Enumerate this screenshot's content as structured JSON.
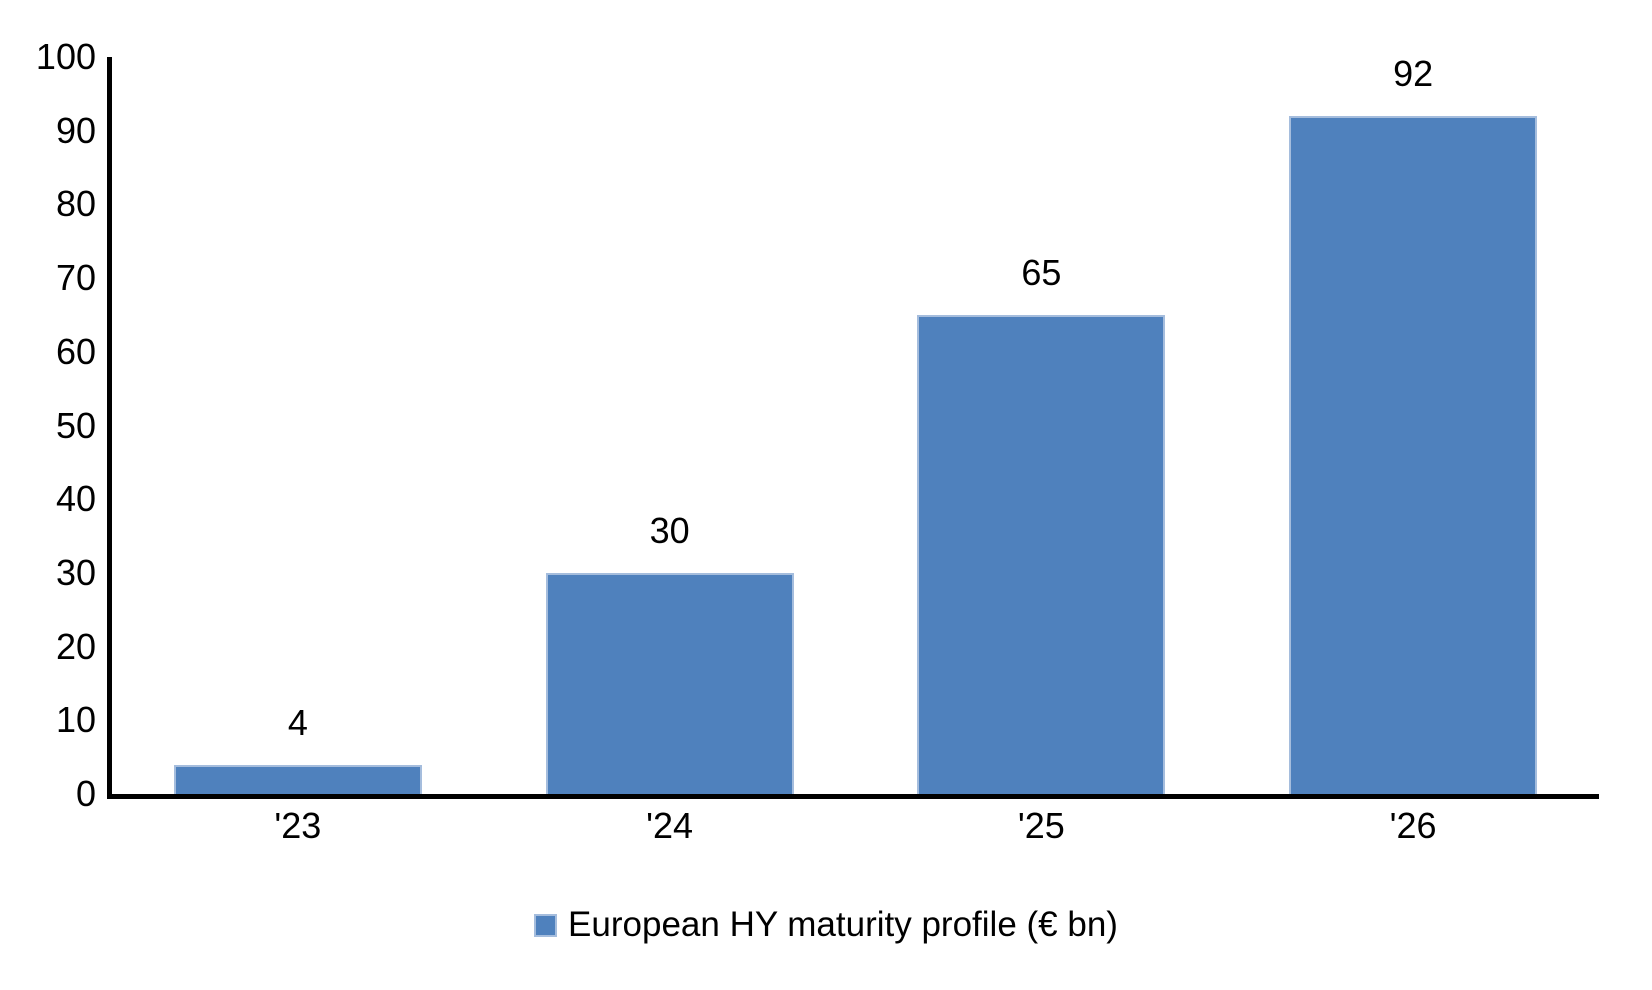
{
  "chart_data": {
    "type": "bar",
    "categories": [
      "'23",
      "'24",
      "'25",
      "'26"
    ],
    "values": [
      4,
      30,
      65,
      92
    ],
    "data_labels": [
      "4",
      "30",
      "65",
      "92"
    ],
    "title": "",
    "xlabel": "",
    "ylabel": "",
    "ylim": [
      0,
      100
    ],
    "yticks": [
      0,
      10,
      20,
      30,
      40,
      50,
      60,
      70,
      80,
      90,
      100
    ],
    "grid": false,
    "legend": {
      "label": "European HY maturity profile (€ bn)",
      "position": "bottom"
    },
    "colors": {
      "bar_fill": "#4F81BD",
      "bar_border": "#A5BDDD",
      "axis": "#000000",
      "text": "#000000",
      "background": "#FFFFFF"
    }
  }
}
